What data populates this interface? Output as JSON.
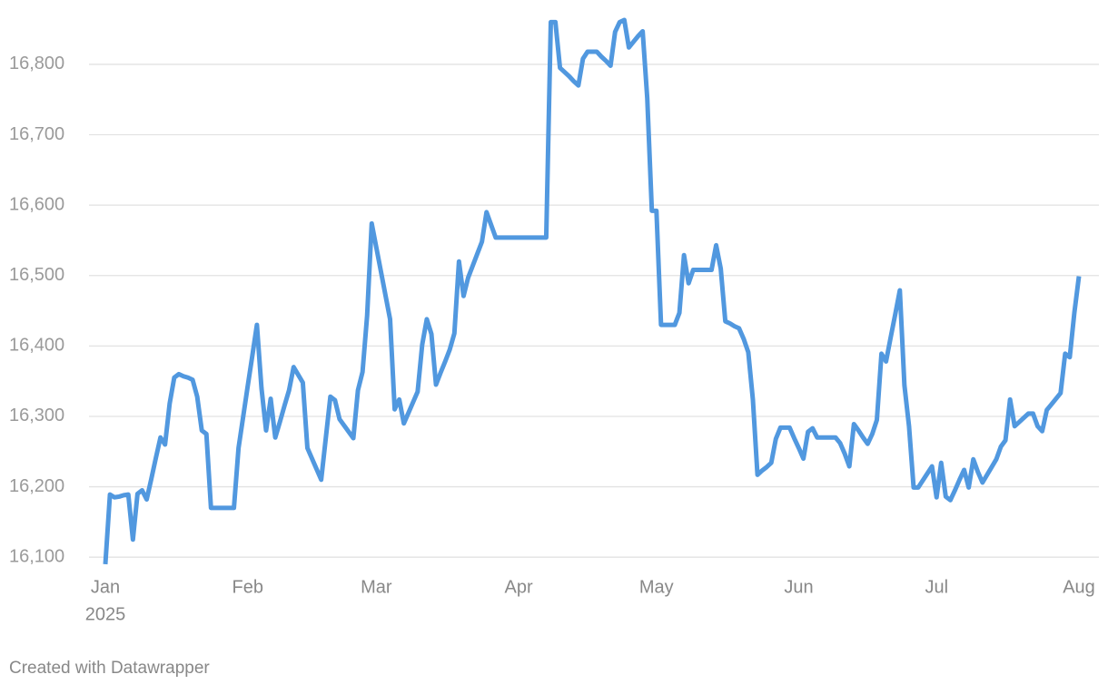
{
  "chart_data": {
    "type": "line",
    "categories": [
      "Jan",
      null,
      null,
      null,
      null,
      null,
      null,
      null,
      null,
      null,
      null,
      null,
      null,
      null,
      null,
      null,
      null,
      null,
      null,
      null,
      null,
      null,
      null,
      null,
      null,
      null,
      null,
      null,
      null,
      null,
      null,
      "Feb",
      null,
      null,
      null,
      null,
      null,
      null,
      null,
      null,
      null,
      null,
      null,
      null,
      null,
      null,
      null,
      null,
      null,
      null,
      null,
      null,
      null,
      null,
      null,
      null,
      null,
      null,
      null,
      "Mar",
      null,
      null,
      null,
      null,
      null,
      null,
      null,
      null,
      null,
      null,
      null,
      null,
      null,
      null,
      null,
      null,
      null,
      null,
      null,
      null,
      null,
      null,
      null,
      null,
      null,
      null,
      null,
      null,
      null,
      null,
      "Apr",
      null,
      null,
      null,
      null,
      null,
      null,
      null,
      null,
      null,
      null,
      null,
      null,
      null,
      null,
      null,
      null,
      null,
      null,
      null,
      null,
      null,
      null,
      null,
      null,
      null,
      null,
      null,
      null,
      null,
      "May",
      null,
      null,
      null,
      null,
      null,
      null,
      null,
      null,
      null,
      null,
      null,
      null,
      null,
      null,
      null,
      null,
      null,
      null,
      null,
      null,
      null,
      null,
      null,
      null,
      null,
      null,
      null,
      null,
      null,
      null,
      "Jun",
      null,
      null,
      null,
      null,
      null,
      null,
      null,
      null,
      null,
      null,
      null,
      null,
      null,
      null,
      null,
      null,
      null,
      null,
      null,
      null,
      null,
      null,
      null,
      null,
      null,
      null,
      null,
      null,
      null,
      "Jul",
      null,
      null,
      null,
      null,
      null,
      null,
      null,
      null,
      null,
      null,
      null,
      null,
      null,
      null,
      null,
      null,
      null,
      null,
      null,
      null,
      null,
      null,
      null,
      null,
      null,
      null,
      null,
      null,
      null,
      null,
      "Aug"
    ],
    "x_year_label": "2025",
    "values": [
      16090,
      16189,
      16185,
      16186,
      16188,
      16189,
      16125,
      16190,
      16195,
      16182,
      16211,
      16241,
      16270,
      16260,
      16318,
      16355,
      16360,
      16357,
      16355,
      16352,
      16328,
      16280,
      16275,
      16170,
      16170,
      16170,
      16170,
      16170,
      16170,
      16255,
      16299,
      16343,
      16386,
      16430,
      16340,
      16280,
      16325,
      16270,
      16292,
      16315,
      16337,
      16370,
      16359,
      16348,
      16255,
      16240,
      16225,
      16210,
      16269,
      16328,
      16323,
      16296,
      16287,
      16278,
      16269,
      16337,
      16363,
      16443,
      16574,
      16540,
      16506,
      16472,
      16438,
      16310,
      16324,
      16290,
      16305,
      16320,
      16335,
      16402,
      16438,
      16417,
      16345,
      16362,
      16378,
      16395,
      16418,
      16520,
      16471,
      16497,
      16514,
      16531,
      16548,
      16590,
      16572,
      16554,
      16554,
      16554,
      16554,
      16554,
      16554,
      16554,
      16554,
      16554,
      16554,
      16554,
      16554,
      16860,
      16860,
      16795,
      16789,
      16783,
      16776,
      16770,
      16808,
      16818,
      16818,
      16818,
      16811,
      16805,
      16798,
      16846,
      16860,
      16863,
      16824,
      16832,
      16840,
      16847,
      16752,
      16592,
      16592,
      16430,
      16430,
      16430,
      16430,
      16447,
      16529,
      16489,
      16508,
      16508,
      16508,
      16508,
      16508,
      16543,
      16510,
      16435,
      16432,
      16428,
      16425,
      16410,
      16391,
      16324,
      16217,
      16223,
      16228,
      16234,
      16268,
      16284,
      16284,
      16284,
      16269,
      16255,
      16240,
      16278,
      16283,
      16270,
      16270,
      16270,
      16270,
      16270,
      16262,
      16247,
      16229,
      16289,
      16280,
      16270,
      16261,
      16275,
      16295,
      16389,
      16378,
      16412,
      16445,
      16479,
      16344,
      16286,
      16199,
      16199,
      16209,
      16219,
      16229,
      16185,
      16234,
      16186,
      16181,
      16195,
      16210,
      16224,
      16199,
      16239,
      16221,
      16206,
      16217,
      16228,
      16239,
      16257,
      16266,
      16324,
      16286,
      16292,
      16298,
      16304,
      16304,
      16286,
      16279,
      16309,
      16317,
      16325,
      16333,
      16389,
      16384,
      16447,
      16499
    ],
    "color": "#5198df",
    "ylim": [
      16080,
      16870
    ],
    "yticks": [
      {
        "value": 16100,
        "label": "16,100"
      },
      {
        "value": 16200,
        "label": "16,200"
      },
      {
        "value": 16300,
        "label": "16,300"
      },
      {
        "value": 16400,
        "label": "16,400"
      },
      {
        "value": 16500,
        "label": "16,500"
      },
      {
        "value": 16600,
        "label": "16,600"
      },
      {
        "value": 16700,
        "label": "16,700"
      },
      {
        "value": 16800,
        "label": "16,800"
      }
    ],
    "grid": true,
    "credit": "Created with Datawrapper"
  }
}
